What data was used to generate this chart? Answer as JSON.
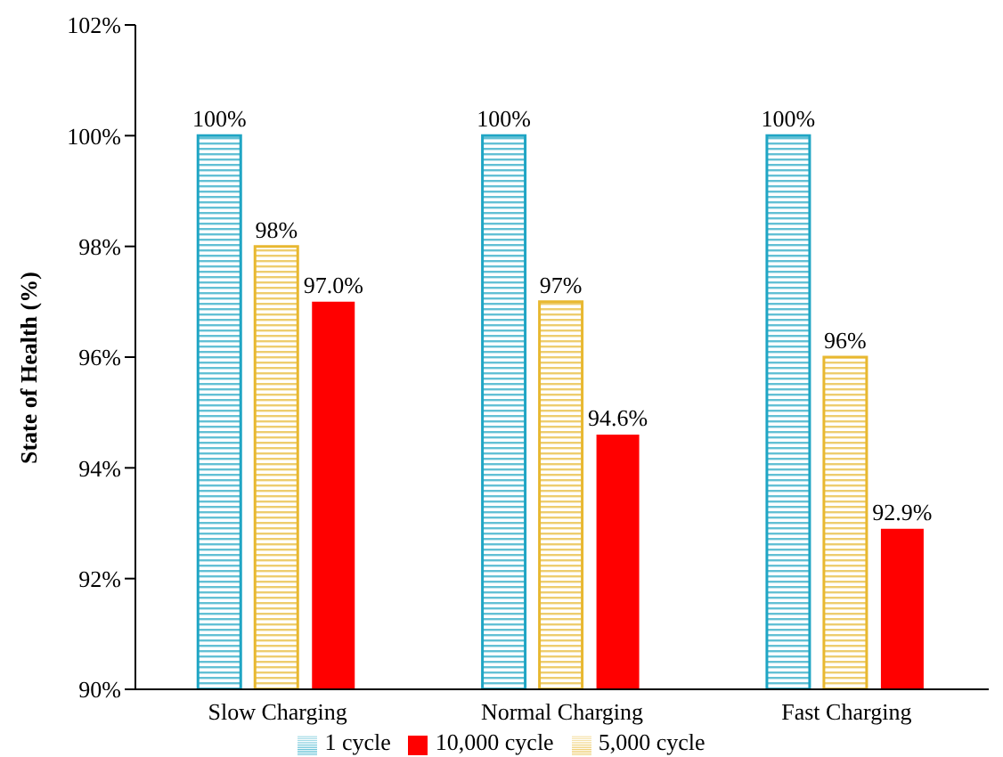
{
  "chart_data": {
    "type": "bar",
    "ylabel": "State of Health (%)",
    "categories": [
      "Slow Charging",
      "Normal Charging",
      "Fast Charging"
    ],
    "series": [
      {
        "name": "1 cycle",
        "color": "#1fa5c4",
        "values": [
          100,
          100,
          100
        ],
        "value_labels": [
          "100%",
          "100%",
          "100%"
        ]
      },
      {
        "name": "5,000 cycle",
        "color": "#e8b830",
        "values": [
          98,
          97,
          96
        ],
        "value_labels": [
          "98%",
          "97%",
          "96%"
        ]
      },
      {
        "name": "10,000 cycle",
        "color": "#ff0000",
        "values": [
          97.0,
          94.6,
          92.9
        ],
        "value_labels": [
          "97.0%",
          "94.6%",
          "92.9%"
        ]
      }
    ],
    "ylim": [
      90,
      102
    ],
    "yticks": [
      {
        "value": 90,
        "label": "90%"
      },
      {
        "value": 92,
        "label": "92%"
      },
      {
        "value": 94,
        "label": "94%"
      },
      {
        "value": 96,
        "label": "96%"
      },
      {
        "value": 98,
        "label": "98%"
      },
      {
        "value": 100,
        "label": "100%"
      },
      {
        "value": 102,
        "label": "102%"
      }
    ],
    "legend": "bottom",
    "grid": false
  }
}
